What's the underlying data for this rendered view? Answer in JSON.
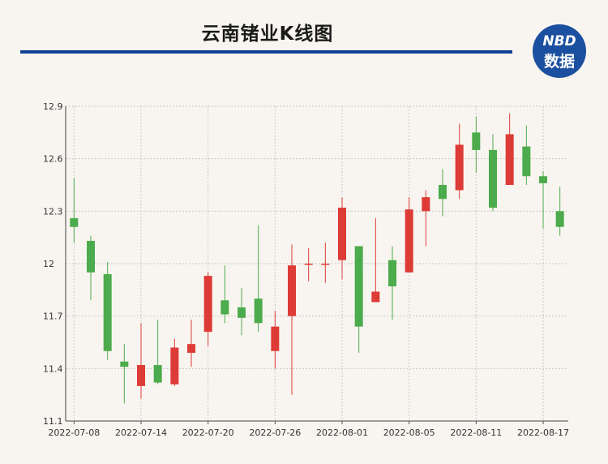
{
  "header": {
    "title": "云南锗业K线图",
    "logo_top": "NBD",
    "logo_bottom": "数据"
  },
  "colors": {
    "up": "#dd3b36",
    "down": "#4cab4c",
    "rule": "#0f3f95",
    "grid": "#c8c8c8"
  },
  "chart_data": {
    "type": "candlestick",
    "title": "云南锗业K线图",
    "ylim": [
      11.1,
      12.9
    ],
    "yticks": [
      11.1,
      11.4,
      11.7,
      12,
      12.3,
      12.6,
      12.9
    ],
    "ytick_labels": [
      "11.1",
      "11.4",
      "11.7",
      "12",
      "12.3",
      "12.6",
      "12.9"
    ],
    "xtick_labels": [
      "2022-07-08",
      "2022-07-14",
      "2022-07-20",
      "2022-07-26",
      "2022-08-01",
      "2022-08-05",
      "2022-08-11",
      "2022-08-17"
    ],
    "xtick_positions": [
      0,
      4,
      8,
      12,
      16,
      20,
      24,
      28
    ],
    "candles": [
      {
        "open": 12.26,
        "close": 12.21,
        "high": 12.49,
        "low": 12.12
      },
      {
        "open": 12.13,
        "close": 11.95,
        "high": 12.16,
        "low": 11.79
      },
      {
        "open": 11.94,
        "close": 11.5,
        "high": 12.01,
        "low": 11.45
      },
      {
        "open": 11.44,
        "close": 11.41,
        "high": 11.54,
        "low": 11.2
      },
      {
        "open": 11.3,
        "close": 11.42,
        "high": 11.66,
        "low": 11.23
      },
      {
        "open": 11.42,
        "close": 11.32,
        "high": 11.68,
        "low": 11.31
      },
      {
        "open": 11.31,
        "close": 11.52,
        "high": 11.57,
        "low": 11.3
      },
      {
        "open": 11.49,
        "close": 11.54,
        "high": 11.68,
        "low": 11.41
      },
      {
        "open": 11.61,
        "close": 11.93,
        "high": 11.95,
        "low": 11.53
      },
      {
        "open": 11.79,
        "close": 11.71,
        "high": 11.99,
        "low": 11.66
      },
      {
        "open": 11.75,
        "close": 11.69,
        "high": 11.86,
        "low": 11.59
      },
      {
        "open": 11.8,
        "close": 11.66,
        "high": 12.22,
        "low": 11.61
      },
      {
        "open": 11.5,
        "close": 11.64,
        "high": 11.73,
        "low": 11.4
      },
      {
        "open": 11.7,
        "close": 11.99,
        "high": 12.11,
        "low": 11.25
      },
      {
        "open": 12.0,
        "close": 12.0,
        "high": 12.09,
        "low": 11.9
      },
      {
        "open": 12.0,
        "close": 12.0,
        "high": 12.12,
        "low": 11.89
      },
      {
        "open": 12.02,
        "close": 12.32,
        "high": 12.38,
        "low": 11.91
      },
      {
        "open": 12.1,
        "close": 11.64,
        "high": 12.1,
        "low": 11.49
      },
      {
        "open": 11.78,
        "close": 11.84,
        "high": 12.26,
        "low": 11.78
      },
      {
        "open": 12.02,
        "close": 11.87,
        "high": 12.1,
        "low": 11.68
      },
      {
        "open": 11.95,
        "close": 12.31,
        "high": 12.38,
        "low": 11.95
      },
      {
        "open": 12.3,
        "close": 12.38,
        "high": 12.42,
        "low": 12.1
      },
      {
        "open": 12.45,
        "close": 12.37,
        "high": 12.54,
        "low": 12.27
      },
      {
        "open": 12.42,
        "close": 12.68,
        "high": 12.8,
        "low": 12.37
      },
      {
        "open": 12.75,
        "close": 12.65,
        "high": 12.84,
        "low": 12.52
      },
      {
        "open": 12.65,
        "close": 12.32,
        "high": 12.74,
        "low": 12.3
      },
      {
        "open": 12.45,
        "close": 12.74,
        "high": 12.86,
        "low": 12.45
      },
      {
        "open": 12.67,
        "close": 12.5,
        "high": 12.79,
        "low": 12.45
      },
      {
        "open": 12.5,
        "close": 12.46,
        "high": 12.53,
        "low": 12.2
      },
      {
        "open": 12.3,
        "close": 12.21,
        "high": 12.44,
        "low": 12.16
      }
    ]
  }
}
